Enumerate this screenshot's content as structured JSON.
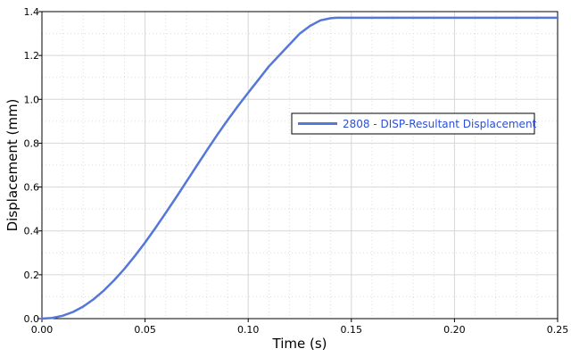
{
  "chart_data": {
    "type": "line",
    "title": "",
    "xlabel": "Time (s)",
    "ylabel": "Displacement (mm)",
    "xlim": [
      0,
      0.25
    ],
    "ylim": [
      0,
      1.4
    ],
    "x_ticks": [
      "0.00",
      "0.05",
      "0.10",
      "0.15",
      "0.20",
      "0.25"
    ],
    "y_ticks": [
      "0.0",
      "0.2",
      "0.4",
      "0.6",
      "0.8",
      "1.0",
      "1.2",
      "1.4"
    ],
    "grid": "major solid, minor dotted",
    "legend_position": "center-right",
    "series": [
      {
        "name": "2808 - DISP-Resultant Displacement",
        "color": "#5577d9",
        "x": [
          0.0,
          0.005,
          0.01,
          0.015,
          0.02,
          0.025,
          0.03,
          0.035,
          0.04,
          0.045,
          0.05,
          0.055,
          0.06,
          0.065,
          0.07,
          0.075,
          0.08,
          0.085,
          0.09,
          0.095,
          0.1,
          0.105,
          0.11,
          0.115,
          0.12,
          0.125,
          0.13,
          0.135,
          0.14,
          0.143,
          0.15,
          0.2,
          0.25
        ],
        "y": [
          0.0,
          0.003,
          0.013,
          0.03,
          0.055,
          0.088,
          0.128,
          0.175,
          0.227,
          0.285,
          0.347,
          0.413,
          0.482,
          0.552,
          0.624,
          0.696,
          0.768,
          0.838,
          0.905,
          0.969,
          1.03,
          1.09,
          1.15,
          1.2,
          1.25,
          1.3,
          1.335,
          1.36,
          1.37,
          1.372,
          1.372,
          1.372,
          1.372
        ]
      }
    ]
  }
}
